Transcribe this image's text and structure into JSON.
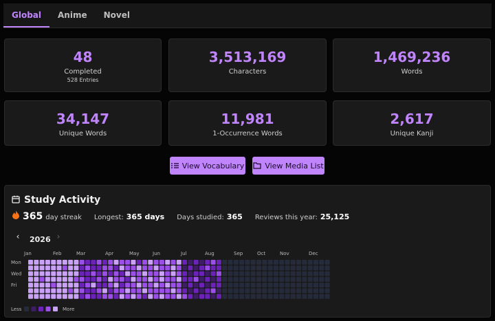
{
  "tabs": [
    "Global",
    "Anime",
    "Novel"
  ],
  "stats": [
    {
      "value": "48",
      "label": "Completed",
      "sub": "528 Entries"
    },
    {
      "value": "3,513,169",
      "label": "Characters"
    },
    {
      "value": "1,469,236",
      "label": "Words"
    },
    {
      "value": "34,147",
      "label": "Unique Words"
    },
    {
      "value": "11,981",
      "label": "1-Occurrence Words"
    },
    {
      "value": "2,617",
      "label": "Unique Kanji"
    }
  ],
  "buttons": [
    "View Vocabulary",
    "View Media List"
  ],
  "activity": {
    "title": "Study Activity",
    "streak": {
      "value": "365",
      "label": "day streak"
    },
    "longest": {
      "label": "Longest:",
      "value": "365 days"
    },
    "studied": {
      "label": "Days studied:",
      "value": "365"
    },
    "reviews": {
      "label": "Reviews this year:",
      "value": "25,125"
    },
    "year": "2026",
    "months": [
      "Jan",
      "Feb",
      "Mar",
      "Apr",
      "May",
      "Jun",
      "Jul",
      "Aug",
      "Sep",
      "Oct",
      "Nov",
      "Dec"
    ],
    "days": [
      "Mon",
      "Wed",
      "Fri"
    ],
    "less": "Less",
    "more": "More",
    "level_colors": [
      "#262b3b",
      "#3d1d63",
      "#6b22b8",
      "#9c4ee8",
      "#c9a1f6"
    ],
    "weeks": [
      [
        4,
        4,
        4,
        4,
        4,
        4,
        4
      ],
      [
        4,
        4,
        4,
        4,
        4,
        4,
        4
      ],
      [
        4,
        4,
        4,
        3,
        4,
        4,
        4
      ],
      [
        4,
        4,
        4,
        4,
        4,
        4,
        4
      ],
      [
        4,
        4,
        4,
        4,
        3,
        4,
        4
      ],
      [
        4,
        4,
        4,
        4,
        4,
        4,
        4
      ],
      [
        4,
        3,
        4,
        4,
        4,
        4,
        4
      ],
      [
        4,
        4,
        4,
        4,
        4,
        3,
        4
      ],
      [
        4,
        4,
        4,
        3,
        4,
        4,
        4
      ],
      [
        3,
        2,
        2,
        3,
        2,
        3,
        2
      ],
      [
        2,
        3,
        2,
        2,
        3,
        2,
        3
      ],
      [
        2,
        2,
        3,
        2,
        4,
        2,
        2
      ],
      [
        3,
        2,
        2,
        3,
        2,
        3,
        2
      ],
      [
        2,
        3,
        3,
        2,
        2,
        4,
        3
      ],
      [
        3,
        3,
        2,
        4,
        3,
        2,
        3
      ],
      [
        4,
        2,
        3,
        3,
        4,
        3,
        2
      ],
      [
        3,
        4,
        2,
        3,
        2,
        3,
        4
      ],
      [
        3,
        3,
        4,
        2,
        3,
        4,
        3
      ],
      [
        4,
        3,
        3,
        4,
        3,
        3,
        4
      ],
      [
        2,
        4,
        3,
        3,
        4,
        3,
        3
      ],
      [
        3,
        3,
        4,
        3,
        3,
        4,
        2
      ],
      [
        4,
        3,
        3,
        4,
        3,
        3,
        4
      ],
      [
        3,
        4,
        3,
        3,
        4,
        3,
        3
      ],
      [
        3,
        3,
        4,
        4,
        3,
        3,
        4
      ],
      [
        4,
        3,
        3,
        3,
        4,
        3,
        3
      ],
      [
        3,
        4,
        4,
        3,
        3,
        4,
        3
      ],
      [
        4,
        3,
        3,
        4,
        3,
        3,
        4
      ],
      [
        2,
        1,
        2,
        2,
        1,
        2,
        3
      ],
      [
        1,
        2,
        1,
        2,
        2,
        1,
        2
      ],
      [
        2,
        1,
        2,
        3,
        1,
        2,
        1
      ],
      [
        1,
        2,
        2,
        1,
        2,
        1,
        2
      ],
      [
        2,
        3,
        1,
        2,
        1,
        2,
        2
      ],
      [
        3,
        2,
        2,
        1,
        2,
        3,
        1
      ],
      [
        2,
        2,
        3,
        2,
        2,
        1,
        2
      ],
      [
        0,
        0,
        0,
        0,
        0,
        0,
        0
      ],
      [
        0,
        0,
        0,
        0,
        0,
        0,
        0
      ],
      [
        0,
        0,
        0,
        0,
        0,
        0,
        0
      ],
      [
        0,
        0,
        0,
        0,
        0,
        0,
        0
      ],
      [
        0,
        0,
        0,
        0,
        0,
        0,
        0
      ],
      [
        0,
        0,
        0,
        0,
        0,
        0,
        0
      ],
      [
        0,
        0,
        0,
        0,
        0,
        0,
        0
      ],
      [
        0,
        0,
        0,
        0,
        0,
        0,
        0
      ],
      [
        0,
        0,
        0,
        0,
        0,
        0,
        0
      ],
      [
        0,
        0,
        0,
        0,
        0,
        0,
        0
      ],
      [
        0,
        0,
        0,
        0,
        0,
        0,
        0
      ],
      [
        0,
        0,
        0,
        0,
        0,
        0,
        0
      ],
      [
        0,
        0,
        0,
        0,
        0,
        0,
        0
      ],
      [
        0,
        0,
        0,
        0,
        0,
        0,
        0
      ],
      [
        0,
        0,
        0,
        0,
        0,
        0,
        0
      ],
      [
        0,
        0,
        0,
        0,
        0,
        0,
        0
      ],
      [
        0,
        0,
        0,
        0,
        0,
        0,
        0
      ],
      [
        0,
        0,
        0,
        0,
        0,
        0,
        0
      ],
      [
        0,
        0,
        0,
        0,
        0,
        0,
        0
      ]
    ]
  }
}
